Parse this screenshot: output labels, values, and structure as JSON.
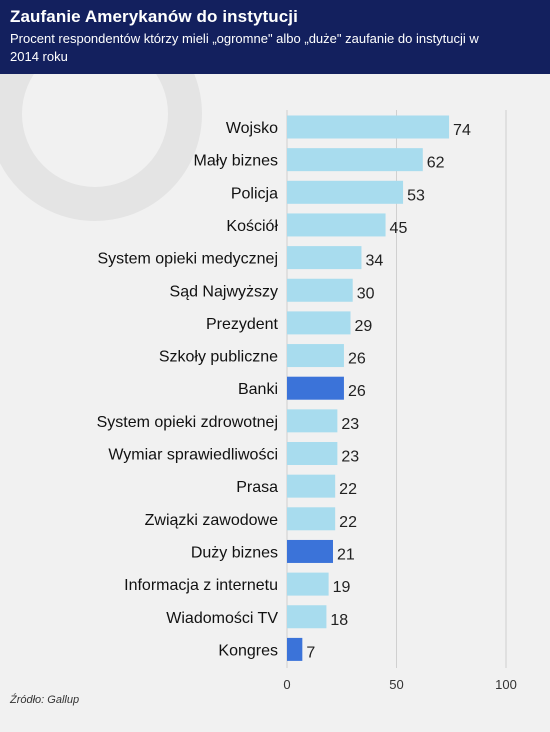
{
  "header": {
    "title": "Zaufanie Amerykanów do instytucji",
    "subtitle": "Procent respondentów którzy mieli „ogromne\" albo „duże\" zaufanie do instytucji w 2014 roku"
  },
  "source": "Źródło: Gallup",
  "colors": {
    "header_bg": "#13205e",
    "bar_default": "#a8dcee",
    "bar_highlight": "#3b73d9",
    "gridline": "#d0d0d0"
  },
  "chart_data": {
    "type": "bar",
    "orientation": "horizontal",
    "categories": [
      "Wojsko",
      "Mały biznes",
      "Policja",
      "Kościół",
      "System opieki medycznej",
      "Sąd Najwyższy",
      "Prezydent",
      "Szkoły publiczne",
      "Banki",
      "System opieki zdrowotnej",
      "Wymiar sprawiedliwości",
      "Prasa",
      "Związki zawodowe",
      "Duży biznes",
      "Informacja z internetu",
      "Wiadomości TV",
      "Kongres"
    ],
    "values": [
      74,
      62,
      53,
      45,
      34,
      30,
      29,
      26,
      26,
      23,
      23,
      22,
      22,
      21,
      19,
      18,
      7
    ],
    "highlighted": [
      "Banki",
      "Duży biznes",
      "Kongres"
    ],
    "xlim": [
      0,
      100
    ],
    "xticks": [
      "0",
      "50",
      "100"
    ],
    "grid": true,
    "title": "",
    "xlabel": "",
    "ylabel": ""
  }
}
